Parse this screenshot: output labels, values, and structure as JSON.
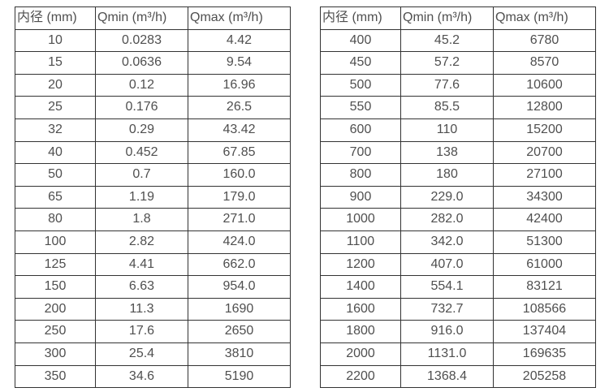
{
  "table_left": {
    "headers": [
      "内径 (mm)",
      "Qmin (m³/h)",
      "Qmax (m³/h)"
    ],
    "rows": [
      [
        "10",
        "0.0283",
        "4.42"
      ],
      [
        "15",
        "0.0636",
        "9.54"
      ],
      [
        "20",
        "0.12",
        "16.96"
      ],
      [
        "25",
        "0.176",
        "26.5"
      ],
      [
        "32",
        "0.29",
        "43.42"
      ],
      [
        "40",
        "0.452",
        "67.85"
      ],
      [
        "50",
        "0.7",
        "160.0"
      ],
      [
        "65",
        "1.19",
        "179.0"
      ],
      [
        "80",
        "1.8",
        "271.0"
      ],
      [
        "100",
        "2.82",
        "424.0"
      ],
      [
        "125",
        "4.41",
        "662.0"
      ],
      [
        "150",
        "6.63",
        "954.0"
      ],
      [
        "200",
        "11.3",
        "1690"
      ],
      [
        "250",
        "17.6",
        "2650"
      ],
      [
        "300",
        "25.4",
        "3810"
      ],
      [
        "350",
        "34.6",
        "5190"
      ]
    ]
  },
  "table_right": {
    "headers": [
      "内径 (mm)",
      "Qmin (m³/h)",
      "Qmax (m³/h)"
    ],
    "rows": [
      [
        "400",
        "45.2",
        "6780"
      ],
      [
        "450",
        "57.2",
        "8570"
      ],
      [
        "500",
        "77.6",
        "10600"
      ],
      [
        "550",
        "85.5",
        "12800"
      ],
      [
        "600",
        "110",
        "15200"
      ],
      [
        "700",
        "138",
        "20700"
      ],
      [
        "800",
        "180",
        "27100"
      ],
      [
        "900",
        "229.0",
        "34300"
      ],
      [
        "1000",
        "282.0",
        "42400"
      ],
      [
        "1100",
        "342.0",
        "51300"
      ],
      [
        "1200",
        "407.0",
        "61000"
      ],
      [
        "1400",
        "554.1",
        "83121"
      ],
      [
        "1600",
        "732.7",
        "108566"
      ],
      [
        "1800",
        "916.0",
        "137404"
      ],
      [
        "2000",
        "1131.0",
        "169635"
      ],
      [
        "2200",
        "1368.4",
        "205258"
      ]
    ]
  },
  "colors": {
    "border": "#333333",
    "text": "#4f4f4f",
    "background": "#ffffff"
  }
}
